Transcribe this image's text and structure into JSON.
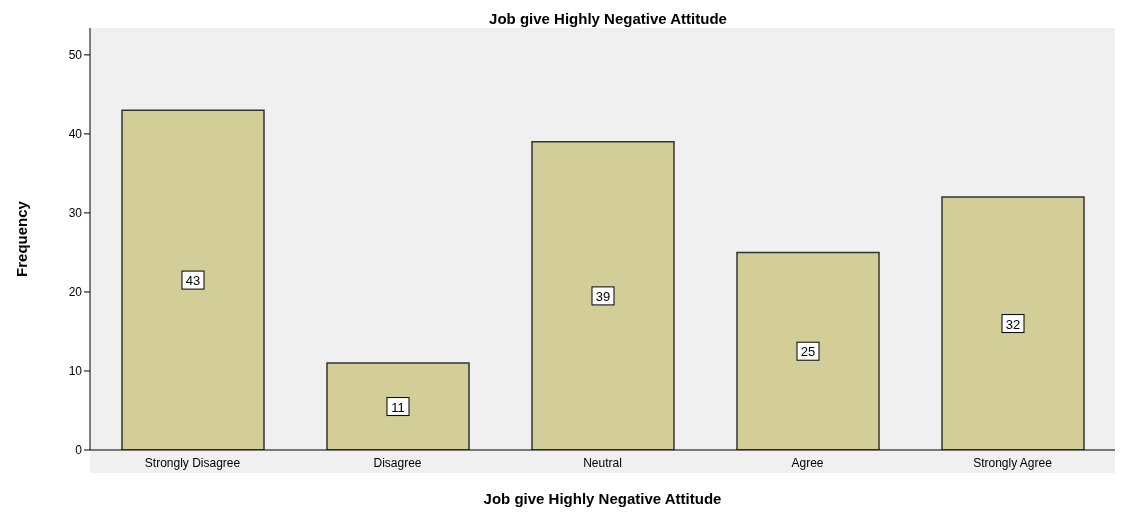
{
  "chart_data": {
    "type": "bar",
    "title": "Job give Highly Negative Attitude",
    "xlabel": "Job give Highly Negative Attitude",
    "ylabel": "Frequency",
    "categories": [
      "Strongly Disagree",
      "Disagree",
      "Neutral",
      "Agree",
      "Strongly Agree"
    ],
    "values": [
      43,
      11,
      39,
      25,
      32
    ],
    "color": "#d3ce97",
    "ylim": [
      0,
      53.4
    ],
    "yticks": [
      0,
      10,
      20,
      30,
      40,
      50
    ],
    "grid": false,
    "legend": false,
    "data_labels": true
  }
}
